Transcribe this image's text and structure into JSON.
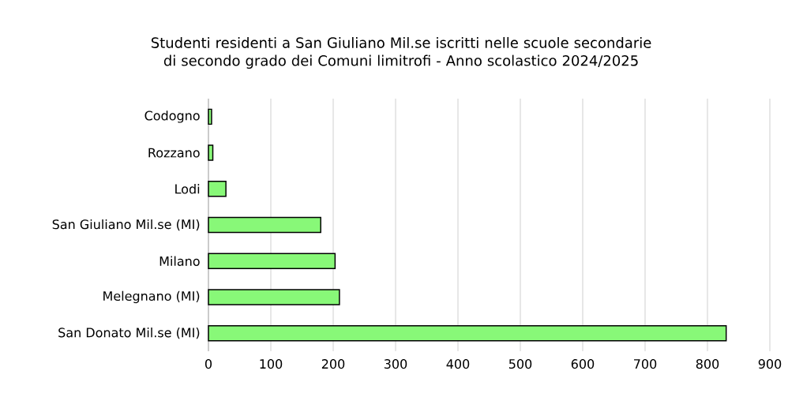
{
  "chart_data": {
    "type": "bar",
    "orientation": "horizontal",
    "title": "Studenti residenti a San Giuliano Mil.se iscritti nelle scuole secondarie di secondo grado dei Comuni limitrofi - Anno scolastico 2024/2025",
    "categories": [
      "Codogno",
      "Rozzano",
      "Lodi",
      "San Giuliano Mil.se (MI)",
      "Milano",
      "Melegnano (MI)",
      "San Donato Mil.se (MI)"
    ],
    "values": [
      5,
      7,
      28,
      180,
      203,
      210,
      830
    ],
    "color": "#88f878",
    "xlim": [
      0,
      900
    ],
    "xticks": [
      0,
      100,
      200,
      300,
      400,
      500,
      600,
      700,
      800,
      900
    ],
    "grid": "x"
  }
}
